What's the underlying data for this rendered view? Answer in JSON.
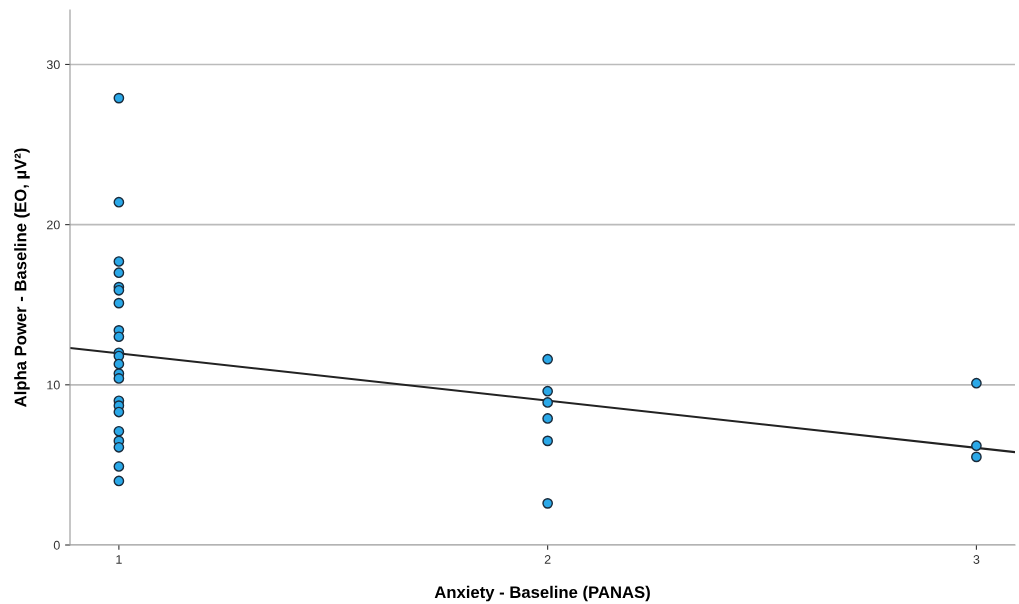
{
  "chart_data": {
    "type": "scatter",
    "xlabel": "Anxiety - Baseline (PANAS)",
    "ylabel": "Alpha Power - Baseline (EO, µV²)",
    "series": [
      {
        "marker": "circle",
        "color": "#2aa8e8",
        "x": [
          1,
          1,
          1,
          1,
          1,
          1,
          1,
          1,
          1,
          1,
          1,
          1,
          1,
          1,
          1,
          1,
          1,
          1,
          1,
          1,
          1,
          1,
          2,
          2,
          2,
          2,
          2,
          2,
          3,
          3,
          3
        ],
        "values": [
          27.9,
          21.4,
          17.7,
          17.0,
          16.1,
          15.9,
          15.1,
          13.4,
          13.0,
          12.0,
          11.8,
          11.3,
          10.7,
          10.4,
          9.0,
          8.7,
          8.3,
          7.1,
          6.5,
          6.1,
          4.9,
          4.0,
          11.6,
          9.6,
          8.9,
          7.9,
          6.5,
          2.6,
          10.1,
          6.2,
          5.5
        ]
      },
      {
        "type": "line",
        "color": "#222222",
        "x": [
          0.886,
          3.09
        ],
        "values": [
          12.3,
          5.8
        ]
      }
    ],
    "xlim": [
      0.886,
      3.09
    ],
    "ylim": [
      0,
      33.4
    ],
    "xticks": [
      1,
      2,
      3
    ],
    "yticks": [
      0,
      10,
      20,
      30
    ],
    "grid": "y"
  }
}
